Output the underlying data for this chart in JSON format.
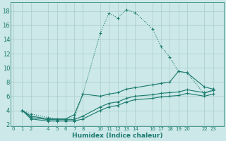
{
  "xlabel": "Humidex (Indice chaleur)",
  "bg_color": "#cce8e8",
  "grid_color": "#aacccc",
  "line_color": "#1a7a6e",
  "series": [
    {
      "x": [
        1,
        2,
        4,
        5,
        6,
        7,
        8,
        10,
        11,
        12,
        13,
        14,
        16,
        17,
        18,
        19,
        20,
        22,
        23
      ],
      "y": [
        4.0,
        3.5,
        3.0,
        2.8,
        2.8,
        3.0,
        6.3,
        14.9,
        17.7,
        17.0,
        18.2,
        17.8,
        15.5,
        13.0,
        11.5,
        9.5,
        9.3,
        6.3,
        7.0
      ],
      "linestyle": ":"
    },
    {
      "x": [
        1,
        2,
        4,
        5,
        6,
        7,
        8,
        10,
        11,
        12,
        13,
        14,
        16,
        17,
        18,
        19,
        20,
        22,
        23
      ],
      "y": [
        4.0,
        3.2,
        2.8,
        2.8,
        2.8,
        3.4,
        6.3,
        6.0,
        6.3,
        6.5,
        7.0,
        7.2,
        7.6,
        7.8,
        8.0,
        9.5,
        9.3,
        7.3,
        7.0
      ],
      "linestyle": "-"
    },
    {
      "x": [
        1,
        2,
        4,
        5,
        6,
        7,
        8,
        10,
        11,
        12,
        13,
        14,
        16,
        17,
        18,
        19,
        20,
        22,
        23
      ],
      "y": [
        4.0,
        3.0,
        2.7,
        2.7,
        2.7,
        2.7,
        3.2,
        4.5,
        5.0,
        5.2,
        5.7,
        6.0,
        6.2,
        6.4,
        6.5,
        6.6,
        6.9,
        6.5,
        6.8
      ],
      "linestyle": "-"
    },
    {
      "x": [
        1,
        2,
        4,
        5,
        6,
        7,
        8,
        10,
        11,
        12,
        13,
        14,
        16,
        17,
        18,
        19,
        20,
        22,
        23
      ],
      "y": [
        4.0,
        2.8,
        2.5,
        2.5,
        2.5,
        2.5,
        2.8,
        4.0,
        4.5,
        4.7,
        5.2,
        5.5,
        5.7,
        5.9,
        6.0,
        6.1,
        6.4,
        6.0,
        6.3
      ],
      "linestyle": "-"
    }
  ],
  "xticks": [
    0,
    1,
    2,
    4,
    5,
    6,
    7,
    8,
    10,
    11,
    12,
    13,
    14,
    16,
    17,
    18,
    19,
    20,
    22,
    23
  ],
  "yticks": [
    2,
    4,
    6,
    8,
    10,
    12,
    14,
    16,
    18
  ],
  "xlim": [
    -0.3,
    24.2
  ],
  "ylim": [
    1.8,
    19.2
  ]
}
